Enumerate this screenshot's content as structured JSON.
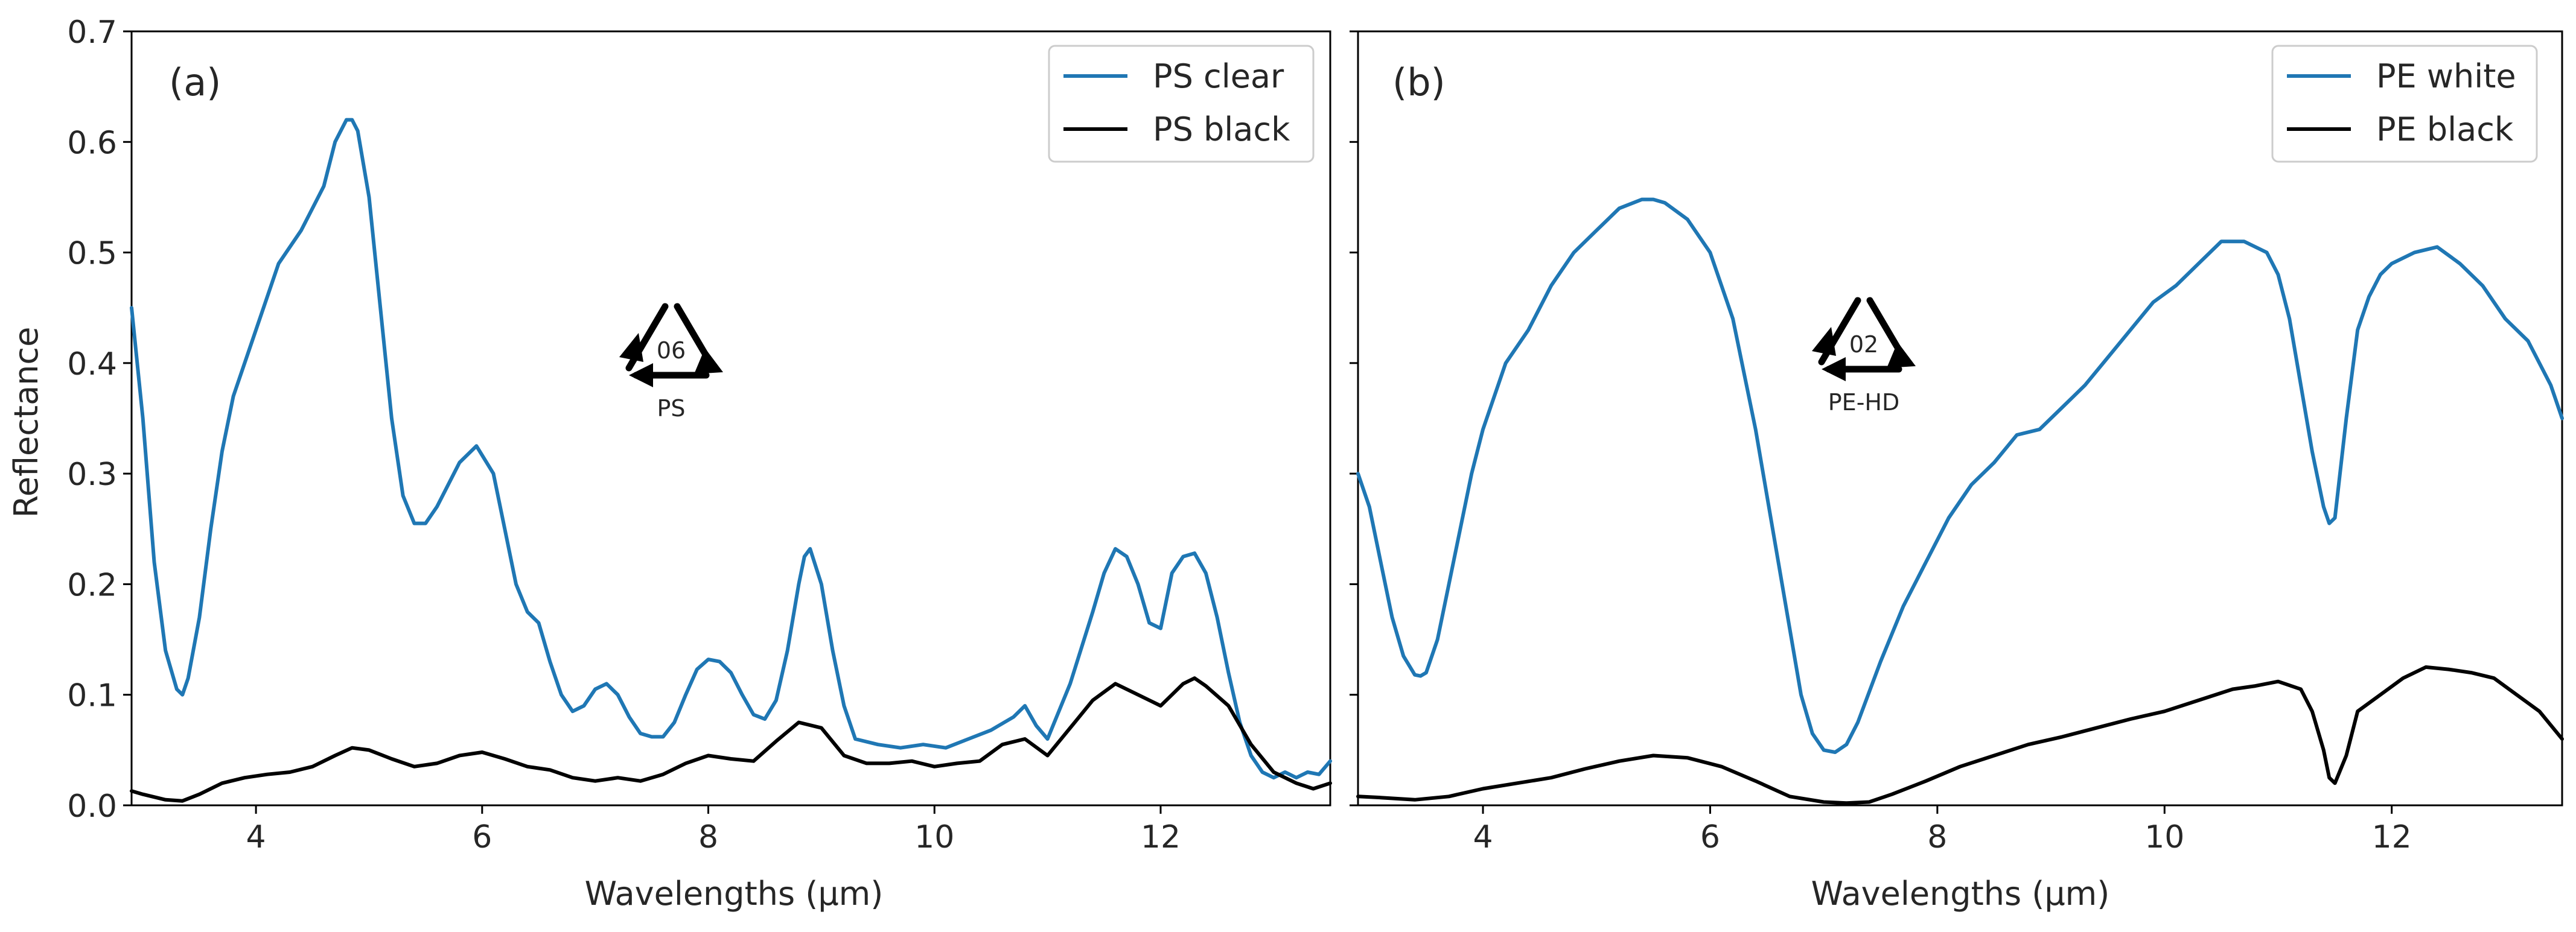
{
  "chart_data": [
    {
      "type": "line",
      "panel_label": "(a)",
      "title": "",
      "xlabel": "Wavelengths (µm)",
      "ylabel": "Reflectance",
      "xlim": [
        2.9,
        13.5
      ],
      "ylim": [
        0.0,
        0.7
      ],
      "xticks": [
        4,
        6,
        8,
        10,
        12
      ],
      "yticks": [
        0.0,
        0.1,
        0.2,
        0.3,
        0.4,
        0.5,
        0.6,
        0.7
      ],
      "ytick_labels": [
        "0.0",
        "0.1",
        "0.2",
        "0.3",
        "0.4",
        "0.5",
        "0.6",
        "0.7"
      ],
      "grid": false,
      "legend_position": "top-right",
      "badge": {
        "code": "06",
        "label": "PS"
      },
      "series": [
        {
          "name": "PS clear",
          "color": "#1f77b4",
          "x": [
            2.9,
            3.0,
            3.1,
            3.2,
            3.3,
            3.35,
            3.4,
            3.5,
            3.6,
            3.7,
            3.8,
            4.0,
            4.2,
            4.4,
            4.6,
            4.7,
            4.8,
            4.85,
            4.9,
            5.0,
            5.1,
            5.2,
            5.3,
            5.4,
            5.5,
            5.6,
            5.7,
            5.8,
            5.95,
            6.1,
            6.2,
            6.3,
            6.4,
            6.5,
            6.6,
            6.7,
            6.8,
            6.9,
            7.0,
            7.1,
            7.2,
            7.3,
            7.4,
            7.5,
            7.6,
            7.7,
            7.8,
            7.9,
            8.0,
            8.1,
            8.2,
            8.3,
            8.4,
            8.5,
            8.6,
            8.7,
            8.8,
            8.85,
            8.9,
            9.0,
            9.1,
            9.2,
            9.3,
            9.5,
            9.7,
            9.9,
            10.1,
            10.3,
            10.5,
            10.7,
            10.8,
            10.9,
            11.0,
            11.2,
            11.4,
            11.5,
            11.6,
            11.7,
            11.8,
            11.9,
            12.0,
            12.1,
            12.2,
            12.3,
            12.4,
            12.5,
            12.6,
            12.7,
            12.8,
            12.9,
            13.0,
            13.1,
            13.2,
            13.3,
            13.4,
            13.5
          ],
          "y": [
            0.45,
            0.35,
            0.22,
            0.14,
            0.105,
            0.1,
            0.115,
            0.17,
            0.25,
            0.32,
            0.37,
            0.43,
            0.49,
            0.52,
            0.56,
            0.6,
            0.62,
            0.62,
            0.61,
            0.55,
            0.45,
            0.35,
            0.28,
            0.255,
            0.255,
            0.27,
            0.29,
            0.31,
            0.325,
            0.3,
            0.25,
            0.2,
            0.175,
            0.165,
            0.13,
            0.1,
            0.085,
            0.09,
            0.105,
            0.11,
            0.1,
            0.08,
            0.065,
            0.062,
            0.062,
            0.075,
            0.1,
            0.123,
            0.132,
            0.13,
            0.12,
            0.1,
            0.082,
            0.078,
            0.095,
            0.14,
            0.2,
            0.225,
            0.232,
            0.2,
            0.14,
            0.09,
            0.06,
            0.055,
            0.052,
            0.055,
            0.052,
            0.06,
            0.068,
            0.08,
            0.09,
            0.072,
            0.06,
            0.11,
            0.175,
            0.21,
            0.232,
            0.225,
            0.2,
            0.165,
            0.16,
            0.21,
            0.225,
            0.228,
            0.21,
            0.17,
            0.12,
            0.075,
            0.045,
            0.03,
            0.025,
            0.03,
            0.025,
            0.03,
            0.028,
            0.04
          ]
        },
        {
          "name": "PS black",
          "color": "#000000",
          "x": [
            2.9,
            3.0,
            3.2,
            3.35,
            3.5,
            3.7,
            3.9,
            4.1,
            4.3,
            4.5,
            4.7,
            4.85,
            5.0,
            5.2,
            5.4,
            5.6,
            5.8,
            6.0,
            6.2,
            6.4,
            6.6,
            6.8,
            7.0,
            7.2,
            7.4,
            7.6,
            7.8,
            8.0,
            8.2,
            8.4,
            8.6,
            8.8,
            9.0,
            9.2,
            9.4,
            9.6,
            9.8,
            10.0,
            10.2,
            10.4,
            10.6,
            10.8,
            11.0,
            11.2,
            11.4,
            11.6,
            11.8,
            12.0,
            12.2,
            12.3,
            12.4,
            12.6,
            12.8,
            13.0,
            13.2,
            13.35,
            13.5
          ],
          "y": [
            0.013,
            0.01,
            0.005,
            0.004,
            0.01,
            0.02,
            0.025,
            0.028,
            0.03,
            0.035,
            0.045,
            0.052,
            0.05,
            0.042,
            0.035,
            0.038,
            0.045,
            0.048,
            0.042,
            0.035,
            0.032,
            0.025,
            0.022,
            0.025,
            0.022,
            0.028,
            0.038,
            0.045,
            0.042,
            0.04,
            0.058,
            0.075,
            0.07,
            0.045,
            0.038,
            0.038,
            0.04,
            0.035,
            0.038,
            0.04,
            0.055,
            0.06,
            0.045,
            0.07,
            0.095,
            0.11,
            0.1,
            0.09,
            0.11,
            0.115,
            0.108,
            0.09,
            0.055,
            0.03,
            0.02,
            0.015,
            0.02
          ]
        }
      ]
    },
    {
      "type": "line",
      "panel_label": "(b)",
      "title": "",
      "xlabel": "Wavelengths (µm)",
      "ylabel": "",
      "xlim": [
        2.9,
        13.5
      ],
      "ylim": [
        0.0,
        0.7
      ],
      "xticks": [
        4,
        6,
        8,
        10,
        12
      ],
      "yticks": [
        0.0,
        0.1,
        0.2,
        0.3,
        0.4,
        0.5,
        0.6,
        0.7
      ],
      "grid": false,
      "legend_position": "top-right",
      "badge": {
        "code": "02",
        "label": "PE-HD"
      },
      "series": [
        {
          "name": "PE white",
          "color": "#1f77b4",
          "x": [
            2.9,
            3.0,
            3.1,
            3.2,
            3.3,
            3.4,
            3.45,
            3.5,
            3.6,
            3.7,
            3.8,
            3.9,
            4.0,
            4.2,
            4.4,
            4.6,
            4.8,
            5.0,
            5.2,
            5.4,
            5.5,
            5.6,
            5.8,
            6.0,
            6.2,
            6.4,
            6.6,
            6.8,
            6.9,
            7.0,
            7.1,
            7.2,
            7.3,
            7.5,
            7.7,
            7.9,
            8.1,
            8.3,
            8.5,
            8.7,
            8.9,
            9.1,
            9.3,
            9.5,
            9.7,
            9.9,
            10.1,
            10.3,
            10.5,
            10.7,
            10.9,
            11.0,
            11.1,
            11.2,
            11.3,
            11.4,
            11.45,
            11.5,
            11.6,
            11.7,
            11.8,
            11.9,
            12.0,
            12.2,
            12.4,
            12.6,
            12.8,
            13.0,
            13.2,
            13.4,
            13.5
          ],
          "y": [
            0.3,
            0.27,
            0.22,
            0.17,
            0.135,
            0.118,
            0.117,
            0.12,
            0.15,
            0.2,
            0.25,
            0.3,
            0.34,
            0.4,
            0.43,
            0.47,
            0.5,
            0.52,
            0.54,
            0.548,
            0.548,
            0.545,
            0.53,
            0.5,
            0.44,
            0.34,
            0.22,
            0.1,
            0.065,
            0.05,
            0.048,
            0.055,
            0.075,
            0.13,
            0.18,
            0.22,
            0.26,
            0.29,
            0.31,
            0.335,
            0.34,
            0.36,
            0.38,
            0.405,
            0.43,
            0.455,
            0.47,
            0.49,
            0.51,
            0.51,
            0.5,
            0.48,
            0.44,
            0.38,
            0.32,
            0.27,
            0.255,
            0.26,
            0.35,
            0.43,
            0.46,
            0.48,
            0.49,
            0.5,
            0.505,
            0.49,
            0.47,
            0.44,
            0.42,
            0.38,
            0.35
          ]
        },
        {
          "name": "PE black",
          "color": "#000000",
          "x": [
            2.9,
            3.1,
            3.4,
            3.7,
            4.0,
            4.3,
            4.6,
            4.9,
            5.2,
            5.5,
            5.8,
            6.1,
            6.4,
            6.7,
            7.0,
            7.2,
            7.4,
            7.6,
            7.9,
            8.2,
            8.5,
            8.8,
            9.1,
            9.4,
            9.7,
            10.0,
            10.3,
            10.6,
            10.8,
            11.0,
            11.2,
            11.3,
            11.4,
            11.45,
            11.5,
            11.6,
            11.7,
            11.9,
            12.1,
            12.3,
            12.5,
            12.7,
            12.9,
            13.1,
            13.3,
            13.5
          ],
          "y": [
            0.008,
            0.007,
            0.005,
            0.008,
            0.015,
            0.02,
            0.025,
            0.033,
            0.04,
            0.045,
            0.043,
            0.035,
            0.022,
            0.008,
            0.003,
            0.002,
            0.003,
            0.01,
            0.022,
            0.035,
            0.045,
            0.055,
            0.062,
            0.07,
            0.078,
            0.085,
            0.095,
            0.105,
            0.108,
            0.112,
            0.105,
            0.085,
            0.05,
            0.025,
            0.02,
            0.045,
            0.085,
            0.1,
            0.115,
            0.125,
            0.123,
            0.12,
            0.115,
            0.1,
            0.085,
            0.06
          ]
        }
      ]
    }
  ]
}
